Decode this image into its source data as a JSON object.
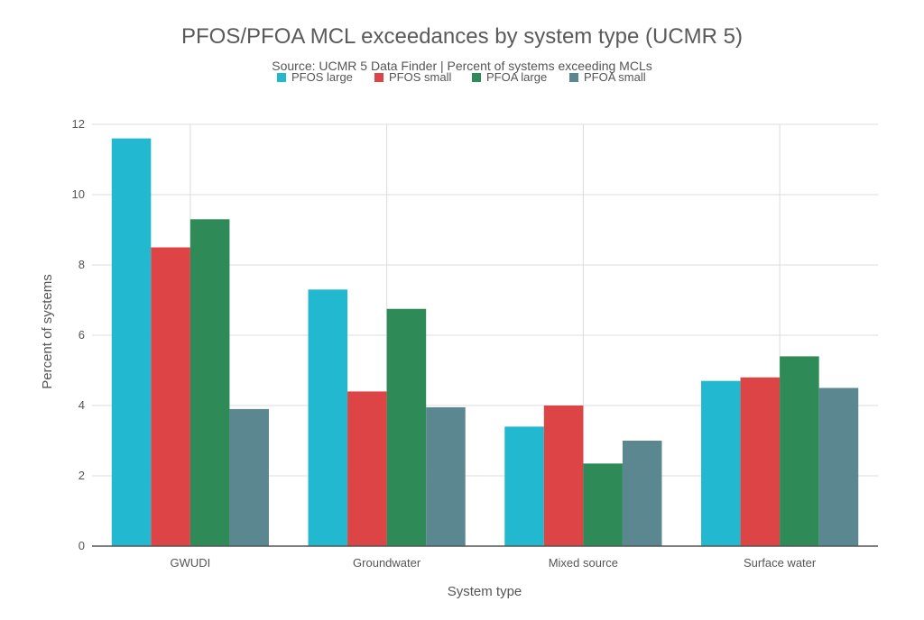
{
  "chart_data": {
    "type": "bar",
    "title": "PFOS/PFOA MCL exceedances by system type (UCMR 5)",
    "subtitle": "Source: UCMR 5 Data Finder | Percent of systems exceeding MCLs",
    "xlabel": "System type",
    "ylabel": "Percent of systems",
    "categories": [
      "GWUDI",
      "Groundwater",
      "Mixed source",
      "Surface water"
    ],
    "ylim": [
      0,
      12
    ],
    "yticks": [
      0,
      2,
      4,
      6,
      8,
      10,
      12
    ],
    "grid": true,
    "legend_position": "top-center",
    "series": [
      {
        "name": "PFOS large",
        "color": "#22b8cf",
        "values": [
          11.6,
          7.3,
          3.4,
          4.7
        ]
      },
      {
        "name": "PFOS small",
        "color": "#dc4446",
        "values": [
          8.5,
          4.4,
          4.0,
          4.8
        ]
      },
      {
        "name": "PFOA large",
        "color": "#2e8b57",
        "values": [
          9.3,
          6.75,
          2.35,
          5.4
        ]
      },
      {
        "name": "PFOA small",
        "color": "#5b8790",
        "values": [
          3.9,
          3.95,
          3.0,
          4.5
        ]
      }
    ]
  }
}
